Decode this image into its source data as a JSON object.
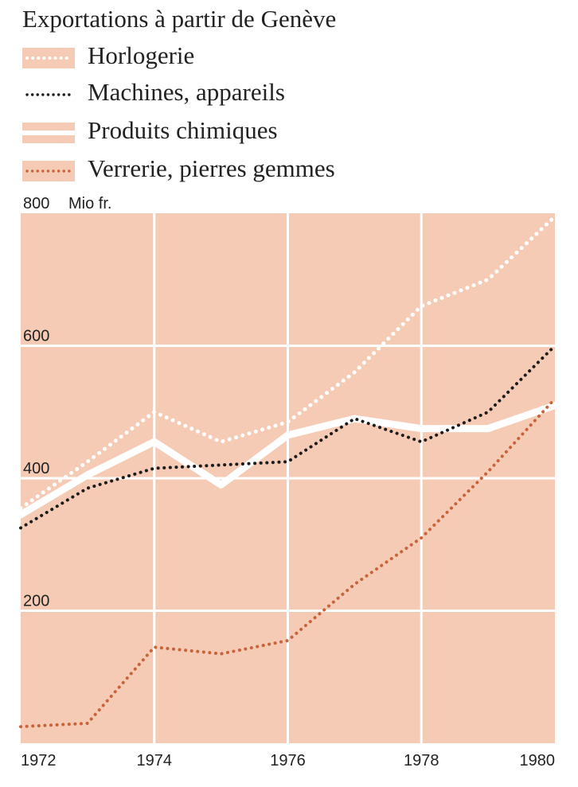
{
  "chart_data": {
    "type": "line",
    "title": "Exportations à partir de Genève",
    "ylabel": "Mio fr.",
    "xlabel": "",
    "x": [
      1972,
      1973,
      1974,
      1975,
      1976,
      1977,
      1978,
      1979,
      1980
    ],
    "xlim": [
      1972,
      1980
    ],
    "ylim": [
      0,
      800
    ],
    "x_ticks": [
      "1972",
      "1974",
      "1976",
      "1978",
      "1980"
    ],
    "y_ticks": [
      "800",
      "600",
      "400",
      "200"
    ],
    "grid": true,
    "legend_position": "top",
    "series": [
      {
        "name": "Horlogerie",
        "values": [
          355,
          425,
          500,
          455,
          485,
          560,
          660,
          700,
          795
        ],
        "color": "#ffffff",
        "style": "dotted"
      },
      {
        "name": "Machines, appareils",
        "values": [
          325,
          385,
          415,
          420,
          425,
          490,
          455,
          500,
          600
        ],
        "color": "#1c1c1c",
        "style": "dotted"
      },
      {
        "name": "Produits chimiques",
        "values": [
          345,
          405,
          455,
          390,
          465,
          490,
          475,
          475,
          510
        ],
        "color": "#ffffff",
        "style": "solid"
      },
      {
        "name": "Verrerie, pierres gemmes",
        "values": [
          25,
          30,
          145,
          135,
          155,
          240,
          310,
          410,
          520
        ],
        "color": "#c8643c",
        "style": "dotted"
      }
    ]
  },
  "colors": {
    "plot_background": "#f5cbb5",
    "grid": "#ffffff"
  }
}
